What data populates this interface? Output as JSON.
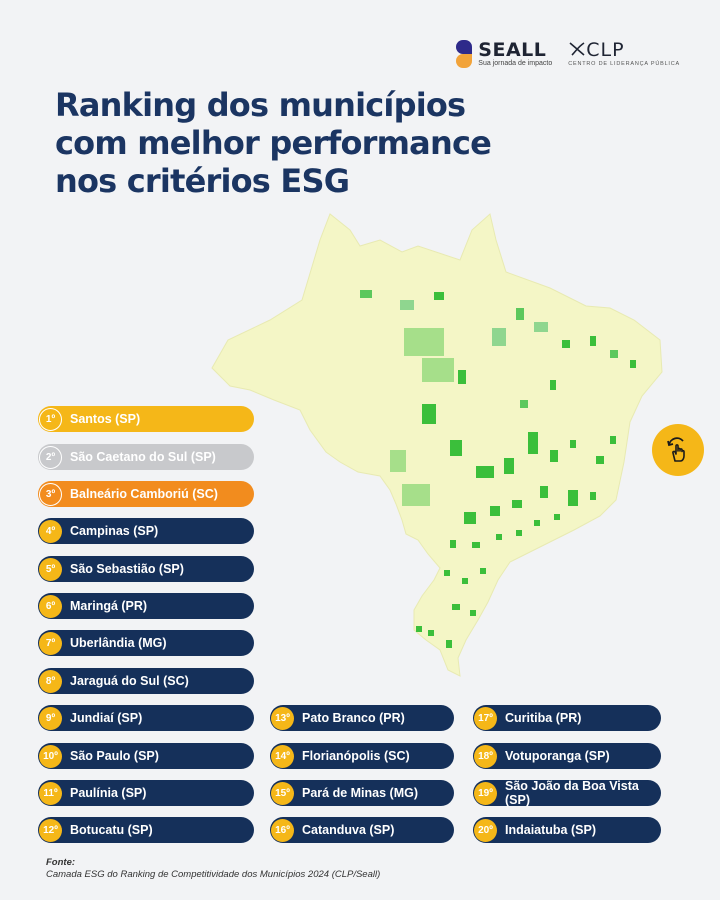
{
  "logos": {
    "seall_name": "SEALL",
    "seall_tagline": "Sua jornada de impacto",
    "clp_name": "CLP",
    "clp_tagline": "CENTRO DE LIDERANÇA PÚBLICA"
  },
  "title_lines": [
    "Ranking dos municípios",
    "com melhor performance",
    "nos critérios ESG"
  ],
  "icons": {
    "swipe": "swipe-hand-icon",
    "map": "brazil-map"
  },
  "colors": {
    "navy": "#15305a",
    "gold": "#f5b718",
    "silver": "#c8c9cc",
    "bronze": "#f28c1e",
    "map_fill": "#f4f6c6",
    "map_green": "#3bbf3b"
  },
  "ranking": [
    {
      "rank": "1º",
      "name": "Santos (SP)"
    },
    {
      "rank": "2º",
      "name": "São Caetano do Sul (SP)"
    },
    {
      "rank": "3º",
      "name": "Balneário Camboriú (SC)"
    },
    {
      "rank": "4º",
      "name": "Campinas (SP)"
    },
    {
      "rank": "5º",
      "name": "São Sebastião (SP)"
    },
    {
      "rank": "6º",
      "name": "Maringá (PR)"
    },
    {
      "rank": "7º",
      "name": "Uberlândia (MG)"
    },
    {
      "rank": "8º",
      "name": "Jaraguá do Sul (SC)"
    },
    {
      "rank": "9º",
      "name": "Jundiaí (SP)"
    },
    {
      "rank": "10º",
      "name": "São Paulo (SP)"
    },
    {
      "rank": "11º",
      "name": "Paulínia (SP)"
    },
    {
      "rank": "12º",
      "name": "Botucatu (SP)"
    },
    {
      "rank": "13º",
      "name": "Pato Branco (PR)"
    },
    {
      "rank": "14º",
      "name": "Florianópolis (SC)"
    },
    {
      "rank": "15º",
      "name": "Pará de Minas (MG)"
    },
    {
      "rank": "16º",
      "name": "Catanduva (SP)"
    },
    {
      "rank": "17º",
      "name": "Curitiba (PR)"
    },
    {
      "rank": "18º",
      "name": "Votuporanga (SP)"
    },
    {
      "rank": "19º",
      "name": "São João da Boa Vista (SP)"
    },
    {
      "rank": "20º",
      "name": "Indaiatuba (SP)"
    }
  ],
  "source": {
    "label": "Fonte:",
    "text": "Camada ESG do Ranking de Competitividade dos Municípios 2024 (CLP/Seall)"
  }
}
